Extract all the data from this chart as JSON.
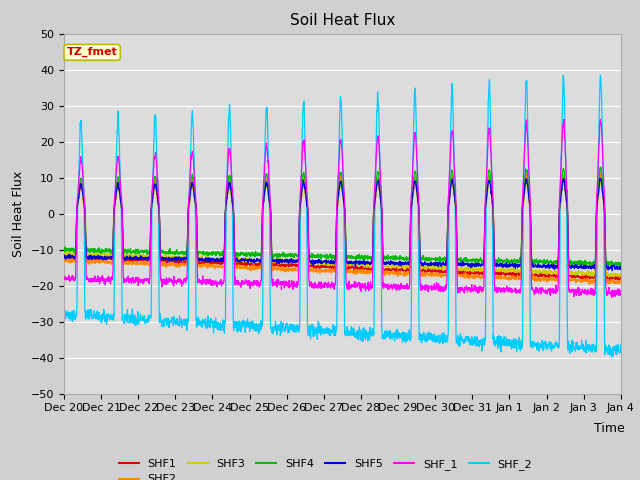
{
  "title": "Soil Heat Flux",
  "xlabel": "Time",
  "ylabel": "Soil Heat Flux",
  "ylim": [
    -50,
    50
  ],
  "fig_facecolor": "#d0d0d0",
  "axes_facecolor": "#dcdcdc",
  "annotation_text": "TZ_fmet",
  "annotation_bg": "#ffffcc",
  "annotation_border": "#bbbb00",
  "annotation_text_color": "#cc0000",
  "series_colors": {
    "SHF1": "#dd0000",
    "SHF2": "#ff8800",
    "SHF3": "#cccc00",
    "SHF4": "#00bb00",
    "SHF5": "#0000dd",
    "SHF_1": "#ff00ff",
    "SHF_2": "#00ccff"
  },
  "x_tick_labels": [
    "Dec 20",
    "Dec 21",
    "Dec 22",
    "Dec 23",
    "Dec 24",
    "Dec 25",
    "Dec 26",
    "Dec 27",
    "Dec 28",
    "Dec 29",
    "Dec 30",
    "Dec 31",
    "Jan 1",
    "Jan 2",
    "Jan 3",
    "Jan 4"
  ],
  "n_days": 15,
  "pts_per_day": 144,
  "seed": 42
}
